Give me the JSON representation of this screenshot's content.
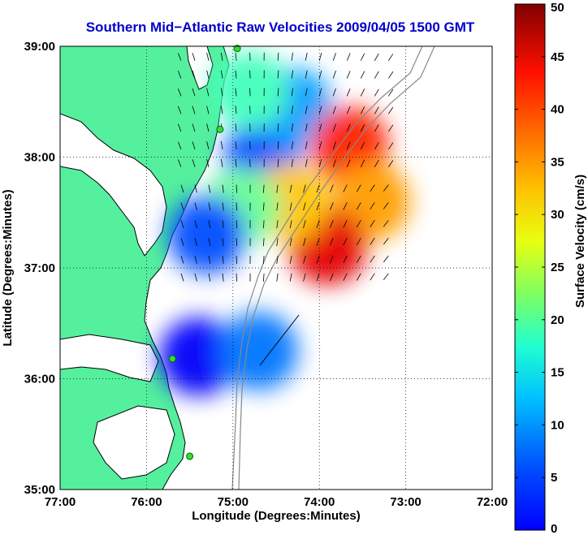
{
  "chart_data": {
    "type": "heatmap",
    "title": "Southern Mid−Atlantic Raw Velocities 2009/04/05 1500 GMT",
    "xlabel": "Longitude (Degrees:Minutes)",
    "ylabel": "Latitude (Degrees:Minutes)",
    "colorbar_label": "Surface Velocity (cm/s)",
    "x_ticks": [
      {
        "value": -77,
        "label": "77:00"
      },
      {
        "value": -76,
        "label": "76:00"
      },
      {
        "value": -75,
        "label": "75:00"
      },
      {
        "value": -74,
        "label": "74:00"
      },
      {
        "value": -73,
        "label": "73:00"
      },
      {
        "value": -72,
        "label": "72:00"
      }
    ],
    "y_ticks": [
      {
        "value": 35,
        "label": "35:00"
      },
      {
        "value": 36,
        "label": "36:00"
      },
      {
        "value": 37,
        "label": "37:00"
      },
      {
        "value": 38,
        "label": "38:00"
      },
      {
        "value": 39,
        "label": "39:00"
      }
    ],
    "xlim": [
      -77,
      -72
    ],
    "ylim": [
      35,
      39
    ],
    "colorbar": {
      "min": 0,
      "max": 50,
      "ticks": [
        0,
        5,
        10,
        15,
        20,
        25,
        30,
        35,
        40,
        45,
        50
      ],
      "colormap": "jet"
    },
    "grid": true,
    "land_color": "#55f09e",
    "ocean_color": "#ffffff",
    "velocity_regions": [
      {
        "lon": -74.65,
        "lat": 38.0,
        "speed": 10
      },
      {
        "lon": -74.3,
        "lat": 38.45,
        "speed": 14
      },
      {
        "lon": -73.65,
        "lat": 38.1,
        "speed": 42
      },
      {
        "lon": -73.4,
        "lat": 37.6,
        "speed": 36
      },
      {
        "lon": -73.9,
        "lat": 37.2,
        "speed": 45
      },
      {
        "lon": -74.35,
        "lat": 37.6,
        "speed": 34
      },
      {
        "lon": -74.9,
        "lat": 37.55,
        "speed": 24
      },
      {
        "lon": -75.3,
        "lat": 37.3,
        "speed": 10
      },
      {
        "lon": -74.8,
        "lat": 38.6,
        "speed": 22
      },
      {
        "lon": -75.4,
        "lat": 36.2,
        "speed": 6
      },
      {
        "lon": -74.7,
        "lat": 36.25,
        "speed": 12
      }
    ],
    "hf_radar_sites": [
      {
        "lon": -74.95,
        "lat": 38.98
      },
      {
        "lon": -75.15,
        "lat": 38.25
      },
      {
        "lon": -75.7,
        "lat": 36.18
      },
      {
        "lon": -75.5,
        "lat": 35.3
      }
    ]
  }
}
